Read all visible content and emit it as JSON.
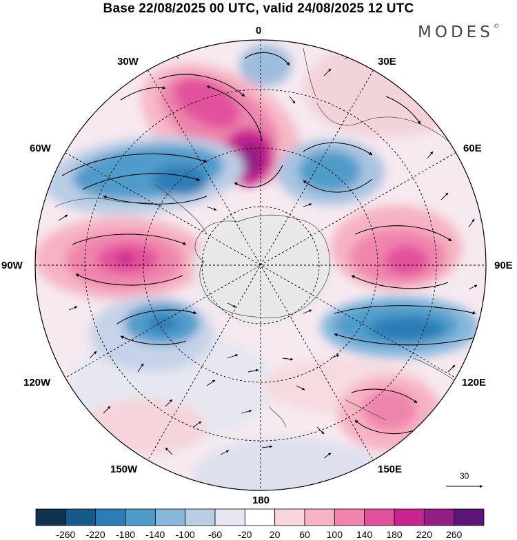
{
  "title": "Base 22/08/2025 00 UTC, valid 24/08/2025 12 UTC",
  "brand": "MODES",
  "brand_mark": "©",
  "longitude_labels": {
    "lon_0": "0",
    "lon_30e": "30E",
    "lon_60e": "60E",
    "lon_90e": "90E",
    "lon_120e": "120E",
    "lon_150e": "150E",
    "lon_180": "180",
    "lon_150w": "150W",
    "lon_120w": "120W",
    "lon_90w": "90W",
    "lon_60w": "60W",
    "lon_30w": "30W"
  },
  "reference_vector": {
    "label": "30"
  },
  "colorbar": {
    "labels": [
      "-260",
      "-220",
      "-180",
      "-140",
      "-100",
      "-60",
      "-20",
      "20",
      "60",
      "100",
      "140",
      "180",
      "220",
      "260"
    ],
    "colors": [
      "#0d3350",
      "#135b8a",
      "#2a7db6",
      "#4f9cca",
      "#86b8dc",
      "#b9cde5",
      "#e5e6f0",
      "#ffffff",
      "#fad6da",
      "#f6b3c2",
      "#ef85ad",
      "#e2519c",
      "#c8248f",
      "#931f85",
      "#5c1479"
    ]
  },
  "anomaly_centers": [
    {
      "name": "south-atlantic-positive",
      "sign": "positive",
      "peak": 240
    },
    {
      "name": "weddell-negative",
      "sign": "negative",
      "peak": -180
    },
    {
      "name": "indian-ocean-negative",
      "sign": "negative",
      "peak": -160
    },
    {
      "name": "kerguelen-positive",
      "sign": "positive",
      "peak": 180
    },
    {
      "name": "south-pacific-positive",
      "sign": "positive",
      "peak": 200
    },
    {
      "name": "pacific-negative",
      "sign": "negative",
      "peak": -160
    },
    {
      "name": "south-indian-negative",
      "sign": "negative",
      "peak": -200
    },
    {
      "name": "australia-positive",
      "sign": "positive",
      "peak": 140
    },
    {
      "name": "greenwich-negative",
      "sign": "negative",
      "peak": -100
    }
  ]
}
